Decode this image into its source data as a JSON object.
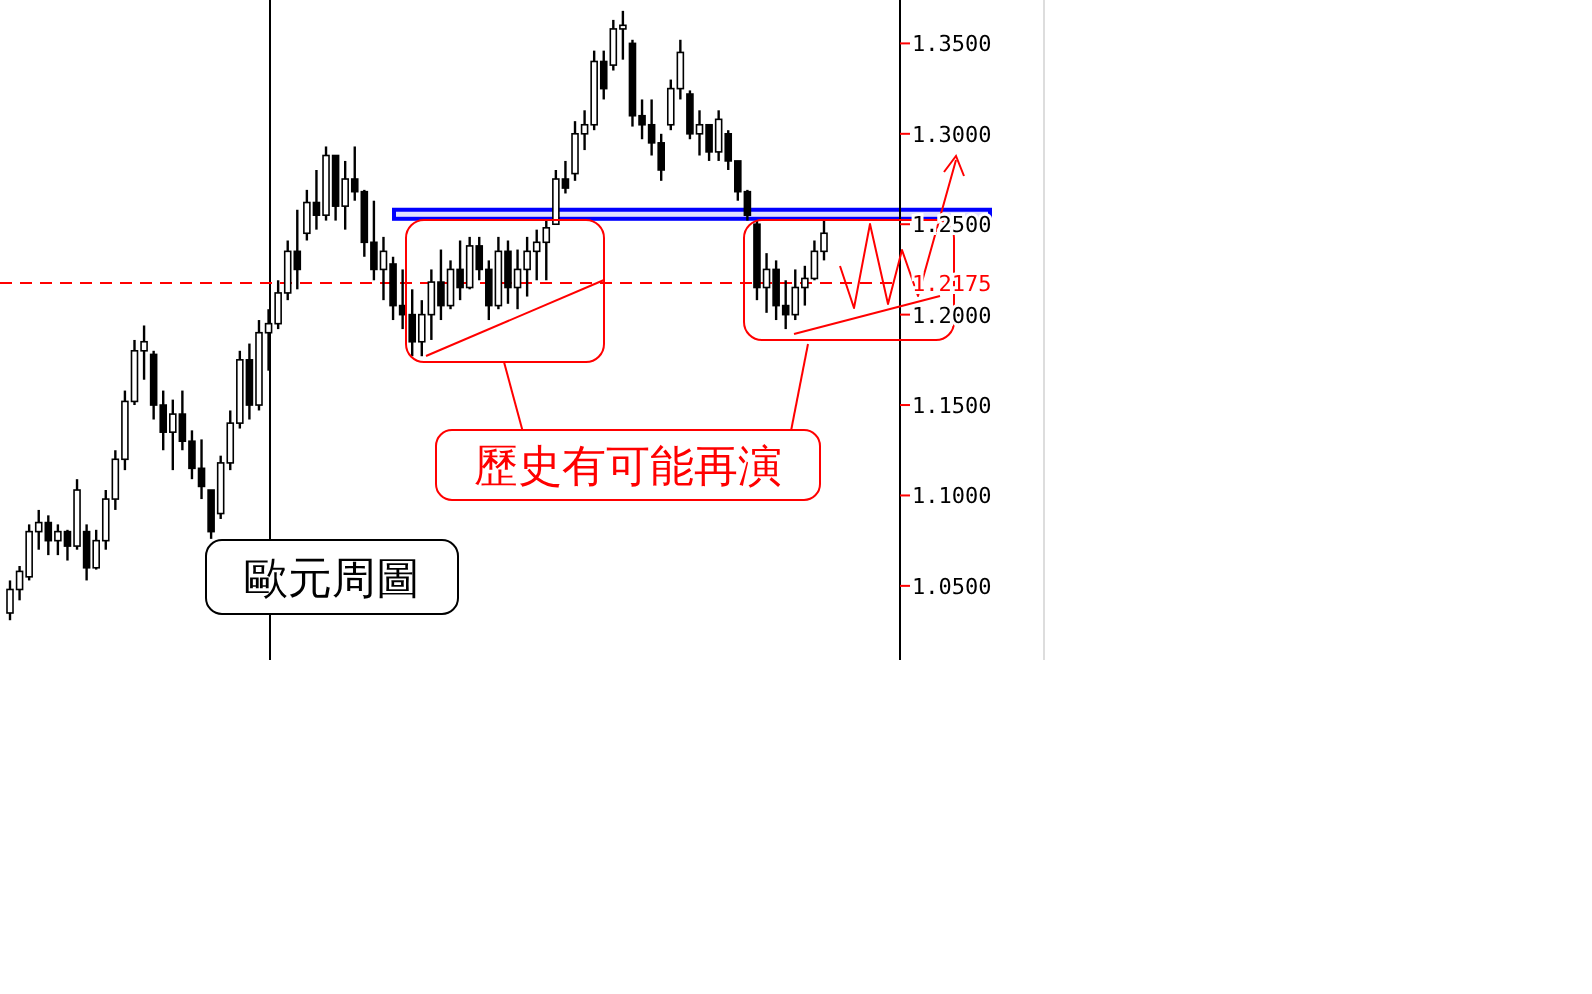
{
  "chart_data": {
    "type": "candlestick",
    "tick_labels": "y",
    "categories": [
      null,
      null,
      null,
      null,
      null,
      null,
      null,
      null,
      null,
      null,
      null,
      null,
      null,
      null,
      null,
      null,
      null,
      null,
      null,
      null,
      null,
      null,
      null,
      null,
      null,
      null,
      null,
      null,
      null,
      null,
      null,
      null,
      null,
      null,
      null,
      null,
      null,
      null,
      null,
      null,
      null,
      null,
      null,
      null,
      null,
      null,
      null,
      null,
      null,
      null,
      null,
      null,
      null,
      null,
      null,
      null,
      null,
      null,
      null,
      null,
      null,
      null,
      null,
      null,
      null,
      null,
      null,
      null,
      null,
      null,
      null,
      null,
      null,
      null,
      null,
      null,
      null,
      null,
      null,
      null,
      null,
      null,
      null,
      null,
      null,
      null
    ],
    "ohlc": [
      [
        1.035,
        1.053,
        1.031,
        1.048
      ],
      [
        1.048,
        1.061,
        1.042,
        1.058
      ],
      [
        1.055,
        1.084,
        1.053,
        1.08
      ],
      [
        1.08,
        1.092,
        1.07,
        1.085
      ],
      [
        1.085,
        1.089,
        1.067,
        1.075
      ],
      [
        1.075,
        1.084,
        1.067,
        1.08
      ],
      [
        1.08,
        1.081,
        1.064,
        1.072
      ],
      [
        1.072,
        1.109,
        1.07,
        1.103
      ],
      [
        1.08,
        1.084,
        1.053,
        1.06
      ],
      [
        1.06,
        1.081,
        1.059,
        1.075
      ],
      [
        1.075,
        1.103,
        1.07,
        1.098
      ],
      [
        1.098,
        1.125,
        1.092,
        1.12
      ],
      [
        1.12,
        1.158,
        1.114,
        1.152
      ],
      [
        1.152,
        1.186,
        1.15,
        1.18
      ],
      [
        1.18,
        1.194,
        1.164,
        1.185
      ],
      [
        1.178,
        1.18,
        1.142,
        1.15
      ],
      [
        1.15,
        1.158,
        1.125,
        1.135
      ],
      [
        1.135,
        1.153,
        1.114,
        1.145
      ],
      [
        1.145,
        1.158,
        1.125,
        1.13
      ],
      [
        1.13,
        1.136,
        1.109,
        1.115
      ],
      [
        1.115,
        1.131,
        1.098,
        1.105
      ],
      [
        1.103,
        1.103,
        1.076,
        1.08
      ],
      [
        1.09,
        1.122,
        1.087,
        1.118
      ],
      [
        1.118,
        1.147,
        1.114,
        1.14
      ],
      [
        1.14,
        1.18,
        1.137,
        1.175
      ],
      [
        1.175,
        1.184,
        1.142,
        1.15
      ],
      [
        1.15,
        1.197,
        1.147,
        1.19
      ],
      [
        1.19,
        1.203,
        1.169,
        1.195
      ],
      [
        1.195,
        1.219,
        1.192,
        1.212
      ],
      [
        1.212,
        1.241,
        1.208,
        1.235
      ],
      [
        1.235,
        1.258,
        1.214,
        1.225
      ],
      [
        1.245,
        1.269,
        1.241,
        1.262
      ],
      [
        1.262,
        1.28,
        1.247,
        1.255
      ],
      [
        1.255,
        1.293,
        1.252,
        1.288
      ],
      [
        1.288,
        1.288,
        1.252,
        1.26
      ],
      [
        1.26,
        1.285,
        1.247,
        1.275
      ],
      [
        1.275,
        1.293,
        1.263,
        1.268
      ],
      [
        1.268,
        1.269,
        1.232,
        1.24
      ],
      [
        1.24,
        1.263,
        1.219,
        1.225
      ],
      [
        1.225,
        1.243,
        1.208,
        1.235
      ],
      [
        1.228,
        1.232,
        1.197,
        1.205
      ],
      [
        1.205,
        1.225,
        1.192,
        1.2
      ],
      [
        1.2,
        1.214,
        1.177,
        1.185
      ],
      [
        1.185,
        1.208,
        1.177,
        1.2
      ],
      [
        1.2,
        1.225,
        1.186,
        1.218
      ],
      [
        1.218,
        1.236,
        1.197,
        1.205
      ],
      [
        1.205,
        1.23,
        1.203,
        1.225
      ],
      [
        1.225,
        1.241,
        1.208,
        1.215
      ],
      [
        1.215,
        1.243,
        1.214,
        1.238
      ],
      [
        1.238,
        1.243,
        1.219,
        1.225
      ],
      [
        1.225,
        1.23,
        1.197,
        1.205
      ],
      [
        1.205,
        1.243,
        1.203,
        1.235
      ],
      [
        1.235,
        1.241,
        1.206,
        1.215
      ],
      [
        1.215,
        1.236,
        1.203,
        1.225
      ],
      [
        1.225,
        1.243,
        1.21,
        1.235
      ],
      [
        1.235,
        1.247,
        1.219,
        1.24
      ],
      [
        1.24,
        1.252,
        1.219,
        1.248
      ],
      [
        1.25,
        1.28,
        1.25,
        1.275
      ],
      [
        1.275,
        1.285,
        1.267,
        1.27
      ],
      [
        1.278,
        1.307,
        1.274,
        1.3
      ],
      [
        1.3,
        1.313,
        1.291,
        1.305
      ],
      [
        1.305,
        1.346,
        1.302,
        1.34
      ],
      [
        1.34,
        1.346,
        1.319,
        1.325
      ],
      [
        1.338,
        1.363,
        1.335,
        1.358
      ],
      [
        1.358,
        1.368,
        1.341,
        1.36
      ],
      [
        1.35,
        1.352,
        1.304,
        1.31
      ],
      [
        1.31,
        1.319,
        1.297,
        1.305
      ],
      [
        1.305,
        1.319,
        1.288,
        1.295
      ],
      [
        1.295,
        1.3,
        1.274,
        1.28
      ],
      [
        1.305,
        1.33,
        1.302,
        1.325
      ],
      [
        1.325,
        1.352,
        1.319,
        1.345
      ],
      [
        1.322,
        1.324,
        1.297,
        1.3
      ],
      [
        1.3,
        1.313,
        1.288,
        1.305
      ],
      [
        1.305,
        1.305,
        1.285,
        1.29
      ],
      [
        1.29,
        1.313,
        1.285,
        1.308
      ],
      [
        1.3,
        1.302,
        1.28,
        1.285
      ],
      [
        1.285,
        1.285,
        1.263,
        1.268
      ],
      [
        1.268,
        1.269,
        1.252,
        1.255
      ],
      [
        1.25,
        1.252,
        1.208,
        1.215
      ],
      [
        1.215,
        1.234,
        1.201,
        1.225
      ],
      [
        1.225,
        1.23,
        1.197,
        1.205
      ],
      [
        1.205,
        1.219,
        1.192,
        1.2
      ],
      [
        1.2,
        1.225,
        1.197,
        1.215
      ],
      [
        1.215,
        1.227,
        1.205,
        1.22
      ],
      [
        1.22,
        1.241,
        1.219,
        1.235
      ],
      [
        1.235,
        1.252,
        1.23,
        1.245
      ]
    ],
    "ylim": [
      1.009,
      1.374
    ],
    "yticks": [
      {
        "value": 1.05,
        "label": "1.0500"
      },
      {
        "value": 1.1,
        "label": "1.1000"
      },
      {
        "value": 1.15,
        "label": "1.1500"
      },
      {
        "value": 1.2,
        "label": "1.2000"
      },
      {
        "value": 1.25,
        "label": "1.2500"
      },
      {
        "value": 1.3,
        "label": "1.3000"
      },
      {
        "value": 1.35,
        "label": "1.3500"
      }
    ],
    "ref_lines": [
      {
        "axis": "y",
        "value": 1.2175,
        "label": "1.2175",
        "color": "#ff0000",
        "line_style": "dashed"
      }
    ],
    "bands": [
      {
        "axis": "y",
        "from": 1.253,
        "to": 1.258,
        "color": "#0000ff"
      }
    ],
    "annotations": [
      "歷史有可能再演",
      "歐元周圖"
    ]
  }
}
